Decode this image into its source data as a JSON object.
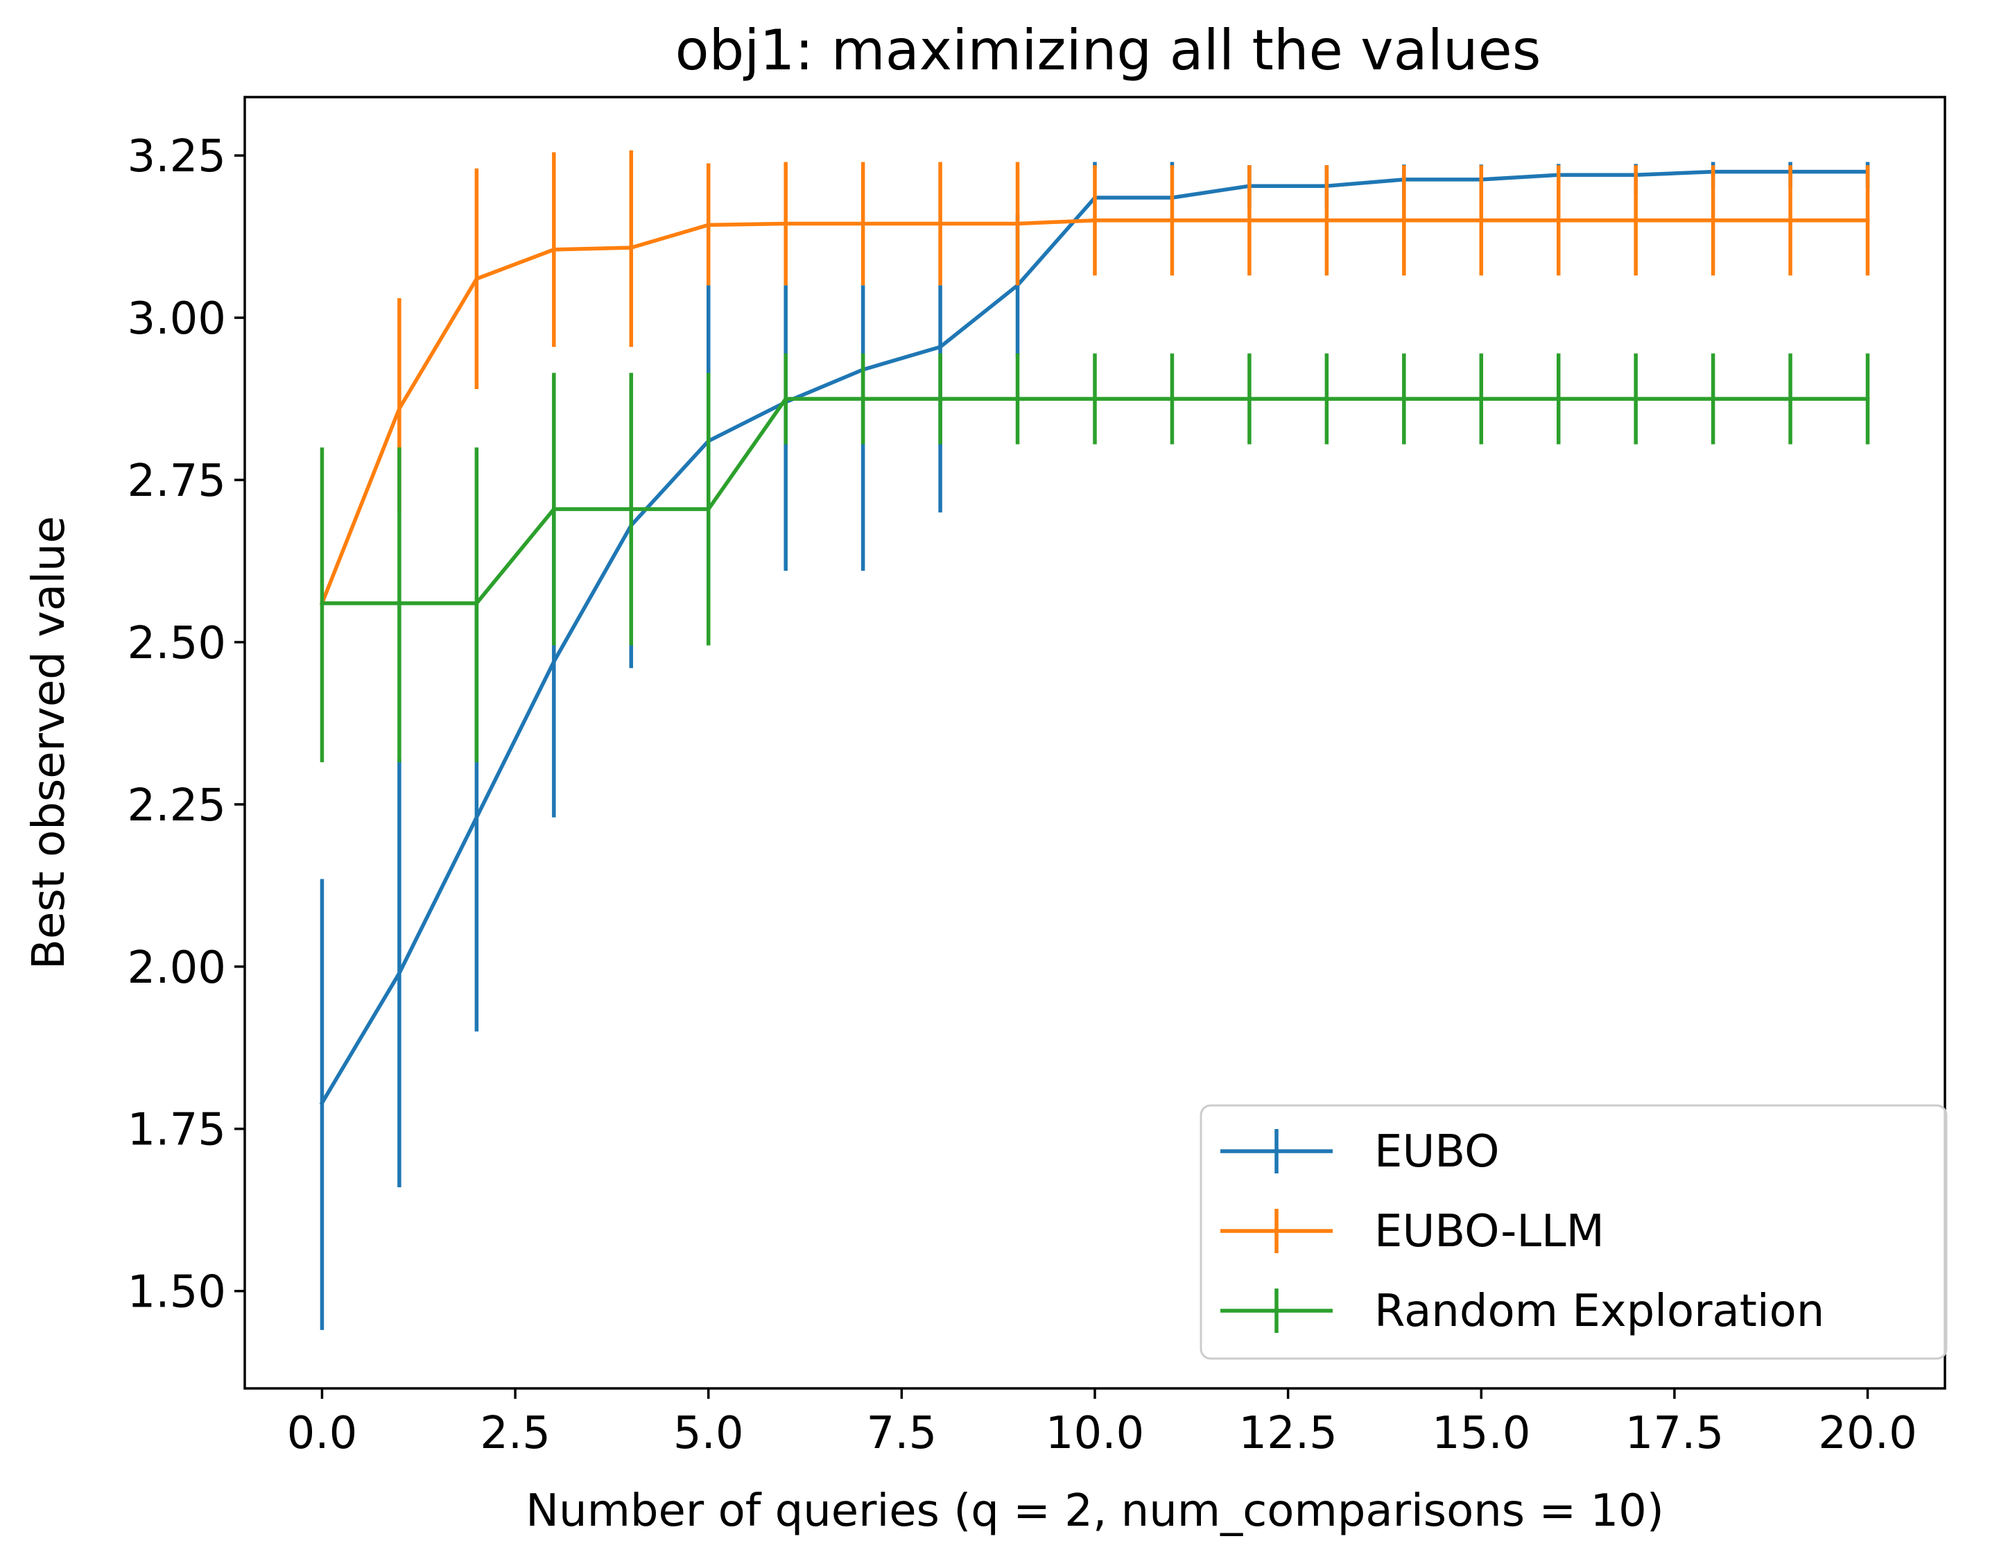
{
  "chart_data": {
    "type": "line",
    "title": "obj1: maximizing all the values",
    "xlabel": "Number of queries (q = 2, num_comparisons = 10)",
    "ylabel": "Best observed value",
    "xlim": [
      -1.0,
      21.0
    ],
    "ylim": [
      1.35,
      3.34
    ],
    "xticks": [
      0.0,
      2.5,
      5.0,
      7.5,
      10.0,
      12.5,
      15.0,
      17.5,
      20.0
    ],
    "xtick_labels": [
      "0.0",
      "2.5",
      "5.0",
      "7.5",
      "10.0",
      "12.5",
      "15.0",
      "17.5",
      "20.0"
    ],
    "yticks": [
      1.5,
      1.75,
      2.0,
      2.25,
      2.5,
      2.75,
      3.0,
      3.25
    ],
    "ytick_labels": [
      "1.50",
      "1.75",
      "2.00",
      "2.25",
      "2.50",
      "2.75",
      "3.00",
      "3.25"
    ],
    "grid": false,
    "legend_position": "lower-right",
    "error_bars": true,
    "x": [
      0,
      1,
      2,
      3,
      4,
      5,
      6,
      7,
      8,
      9,
      10,
      11,
      12,
      13,
      14,
      15,
      16,
      17,
      18,
      19,
      20
    ],
    "series": [
      {
        "name": "EUBO",
        "color": "#1f77b4",
        "values": [
          1.79,
          1.99,
          2.23,
          2.47,
          2.68,
          2.81,
          2.87,
          2.92,
          2.955,
          3.05,
          3.185,
          3.185,
          3.203,
          3.203,
          3.213,
          3.213,
          3.22,
          3.22,
          3.225,
          3.225,
          3.225
        ],
        "lower": [
          1.44,
          1.66,
          1.9,
          2.23,
          2.46,
          2.57,
          2.61,
          2.61,
          2.7,
          2.94,
          3.23,
          3.23,
          3.17,
          3.17,
          3.18,
          3.18,
          3.19,
          3.19,
          3.2,
          3.2,
          3.2
        ],
        "upper": [
          2.135,
          2.32,
          2.56,
          2.71,
          2.9,
          3.05,
          3.05,
          3.05,
          3.05,
          3.16,
          3.24,
          3.24,
          3.235,
          3.235,
          3.236,
          3.236,
          3.237,
          3.237,
          3.24,
          3.24,
          3.24
        ]
      },
      {
        "name": "EUBO-LLM",
        "color": "#ff7f0e",
        "values": [
          2.56,
          2.86,
          3.06,
          3.105,
          3.108,
          3.143,
          3.145,
          3.145,
          3.145,
          3.145,
          3.15,
          3.15,
          3.15,
          3.15,
          3.15,
          3.15,
          3.15,
          3.15,
          3.15,
          3.15,
          3.15
        ],
        "lower": [
          2.56,
          2.7,
          2.89,
          2.955,
          2.955,
          3.05,
          3.05,
          3.05,
          3.05,
          3.05,
          3.065,
          3.065,
          3.065,
          3.065,
          3.065,
          3.065,
          3.065,
          3.065,
          3.065,
          3.065,
          3.065
        ],
        "upper": [
          2.56,
          3.03,
          3.23,
          3.255,
          3.258,
          3.238,
          3.24,
          3.24,
          3.24,
          3.24,
          3.235,
          3.235,
          3.235,
          3.235,
          3.235,
          3.235,
          3.235,
          3.235,
          3.235,
          3.235,
          3.235
        ]
      },
      {
        "name": "Random Exploration",
        "color": "#2ca02c",
        "values": [
          2.56,
          2.56,
          2.56,
          2.705,
          2.705,
          2.705,
          2.875,
          2.875,
          2.875,
          2.875,
          2.875,
          2.875,
          2.875,
          2.875,
          2.875,
          2.875,
          2.875,
          2.875,
          2.875,
          2.875,
          2.875
        ],
        "lower": [
          2.315,
          2.315,
          2.315,
          2.495,
          2.495,
          2.495,
          2.805,
          2.805,
          2.805,
          2.805,
          2.805,
          2.805,
          2.805,
          2.805,
          2.805,
          2.805,
          2.805,
          2.805,
          2.805,
          2.805,
          2.805
        ],
        "upper": [
          2.8,
          2.8,
          2.8,
          2.915,
          2.915,
          2.915,
          2.945,
          2.945,
          2.945,
          2.945,
          2.945,
          2.945,
          2.945,
          2.945,
          2.945,
          2.945,
          2.945,
          2.945,
          2.945,
          2.945,
          2.945
        ]
      }
    ]
  }
}
